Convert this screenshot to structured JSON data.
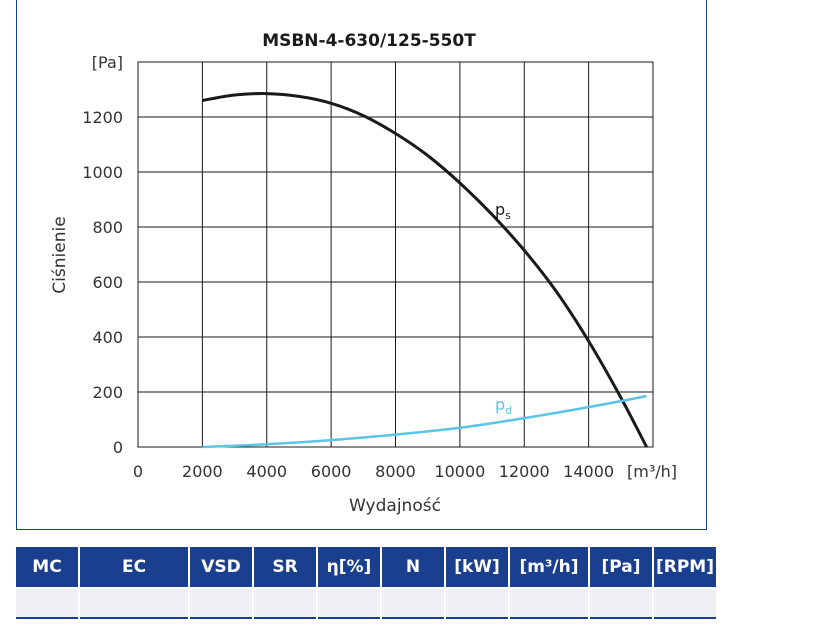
{
  "chart_data": {
    "type": "line",
    "title": "MSBN-4-630/125-550T",
    "xlabel": "Wydajność",
    "ylabel": "Ciśnienie",
    "x_unit": "[m³/h]",
    "y_unit": "[Pa]",
    "xlim": [
      0,
      16000
    ],
    "ylim": [
      0,
      1400
    ],
    "x_ticks": [
      0,
      2000,
      4000,
      6000,
      8000,
      10000,
      12000,
      14000
    ],
    "y_ticks": [
      0,
      200,
      400,
      600,
      800,
      1000,
      1200
    ],
    "grid": true,
    "series": [
      {
        "name": "ps",
        "label_main": "p",
        "label_sub": "s",
        "color": "#1a1a1a",
        "x": [
          2000,
          3000,
          4000,
          5000,
          6000,
          7000,
          8000,
          9000,
          10000,
          11000,
          12000,
          13000,
          14000,
          15000,
          15800
        ],
        "y": [
          1260,
          1280,
          1285,
          1275,
          1250,
          1205,
          1140,
          1060,
          960,
          845,
          715,
          565,
          385,
          180,
          0
        ]
      },
      {
        "name": "pd",
        "label_main": "p",
        "label_sub": "d",
        "color": "#5bc4e8",
        "x": [
          2000,
          4000,
          6000,
          8000,
          10000,
          12000,
          14000,
          15800
        ],
        "y": [
          0,
          10,
          25,
          45,
          70,
          105,
          145,
          185
        ]
      }
    ]
  },
  "table": {
    "headers": [
      "MC",
      "EC",
      "VSD",
      "SR",
      "η[%]",
      "N",
      "[kW]",
      "[m³/h]",
      "[Pa]",
      "[RPM]"
    ],
    "row": [
      "",
      "",
      "",
      "",
      "",
      "",
      "",
      "",
      "",
      ""
    ]
  }
}
